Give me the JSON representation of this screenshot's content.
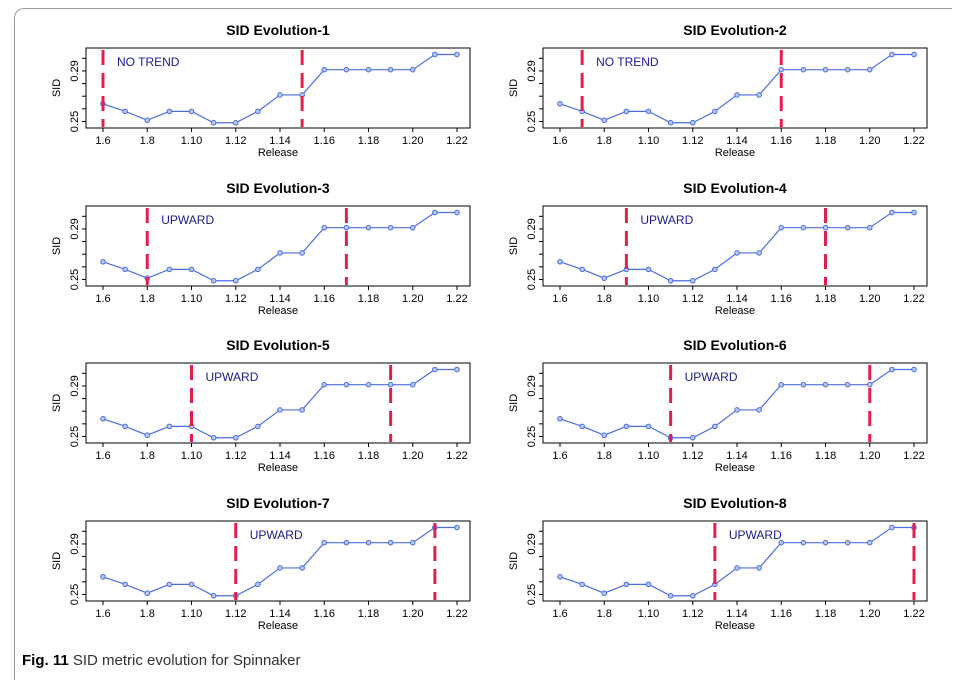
{
  "caption": {
    "label": "Fig. 11",
    "text": "SID metric evolution for Spinnaker"
  },
  "colors": {
    "line": "#4a6ee0",
    "changepoint": "#e0204c",
    "annotation": "#1a1a8c"
  },
  "chart_data": [
    {
      "type": "line",
      "title": "SID Evolution-1",
      "annotation": "NO TREND",
      "xlabel": "Release",
      "ylabel": "SID",
      "categories": [
        "1.6",
        "1.7",
        "1.8",
        "1.9",
        "1.10",
        "1.11",
        "1.12",
        "1.13",
        "1.14",
        "1.15",
        "1.16",
        "1.17",
        "1.18",
        "1.19",
        "1.20",
        "1.21",
        "1.22"
      ],
      "x_tick_labels": [
        "1.6",
        "1.8",
        "1.10",
        "1.12",
        "1.14",
        "1.16",
        "1.18",
        "1.20",
        "1.22"
      ],
      "y_tick_labels": [
        "0.25",
        "0.29"
      ],
      "ylim": [
        0.248,
        0.305
      ],
      "values": [
        0.264,
        0.258,
        0.251,
        0.258,
        0.258,
        0.249,
        0.249,
        0.258,
        0.271,
        0.271,
        0.291,
        0.291,
        0.291,
        0.291,
        0.291,
        0.303,
        0.303
      ],
      "changepoints": [
        "1.6",
        "1.15"
      ]
    },
    {
      "type": "line",
      "title": "SID Evolution-2",
      "annotation": "NO TREND",
      "xlabel": "Release",
      "ylabel": "SID",
      "categories": [
        "1.6",
        "1.7",
        "1.8",
        "1.9",
        "1.10",
        "1.11",
        "1.12",
        "1.13",
        "1.14",
        "1.15",
        "1.16",
        "1.17",
        "1.18",
        "1.19",
        "1.20",
        "1.21",
        "1.22"
      ],
      "x_tick_labels": [
        "1.6",
        "1.8",
        "1.10",
        "1.12",
        "1.14",
        "1.16",
        "1.18",
        "1.20",
        "1.22"
      ],
      "y_tick_labels": [
        "0.25",
        "0.29"
      ],
      "ylim": [
        0.248,
        0.305
      ],
      "values": [
        0.264,
        0.258,
        0.251,
        0.258,
        0.258,
        0.249,
        0.249,
        0.258,
        0.271,
        0.271,
        0.291,
        0.291,
        0.291,
        0.291,
        0.291,
        0.303,
        0.303
      ],
      "changepoints": [
        "1.7",
        "1.16"
      ]
    },
    {
      "type": "line",
      "title": "SID Evolution-3",
      "annotation": "UPWARD",
      "xlabel": "Release",
      "ylabel": "SID",
      "categories": [
        "1.6",
        "1.7",
        "1.8",
        "1.9",
        "1.10",
        "1.11",
        "1.12",
        "1.13",
        "1.14",
        "1.15",
        "1.16",
        "1.17",
        "1.18",
        "1.19",
        "1.20",
        "1.21",
        "1.22"
      ],
      "x_tick_labels": [
        "1.6",
        "1.8",
        "1.10",
        "1.12",
        "1.14",
        "1.16",
        "1.18",
        "1.20",
        "1.22"
      ],
      "y_tick_labels": [
        "0.25",
        "0.29"
      ],
      "ylim": [
        0.248,
        0.305
      ],
      "values": [
        0.264,
        0.258,
        0.251,
        0.258,
        0.258,
        0.249,
        0.249,
        0.258,
        0.271,
        0.271,
        0.291,
        0.291,
        0.291,
        0.291,
        0.291,
        0.303,
        0.303
      ],
      "changepoints": [
        "1.8",
        "1.17"
      ]
    },
    {
      "type": "line",
      "title": "SID Evolution-4",
      "annotation": "UPWARD",
      "xlabel": "Release",
      "ylabel": "SID",
      "categories": [
        "1.6",
        "1.7",
        "1.8",
        "1.9",
        "1.10",
        "1.11",
        "1.12",
        "1.13",
        "1.14",
        "1.15",
        "1.16",
        "1.17",
        "1.18",
        "1.19",
        "1.20",
        "1.21",
        "1.22"
      ],
      "x_tick_labels": [
        "1.6",
        "1.8",
        "1.10",
        "1.12",
        "1.14",
        "1.16",
        "1.18",
        "1.20",
        "1.22"
      ],
      "y_tick_labels": [
        "0.25",
        "0.29"
      ],
      "ylim": [
        0.248,
        0.305
      ],
      "values": [
        0.264,
        0.258,
        0.251,
        0.258,
        0.258,
        0.249,
        0.249,
        0.258,
        0.271,
        0.271,
        0.291,
        0.291,
        0.291,
        0.291,
        0.291,
        0.303,
        0.303
      ],
      "changepoints": [
        "1.9",
        "1.18"
      ]
    },
    {
      "type": "line",
      "title": "SID Evolution-5",
      "annotation": "UPWARD",
      "xlabel": "Release",
      "ylabel": "SID",
      "categories": [
        "1.6",
        "1.7",
        "1.8",
        "1.9",
        "1.10",
        "1.11",
        "1.12",
        "1.13",
        "1.14",
        "1.15",
        "1.16",
        "1.17",
        "1.18",
        "1.19",
        "1.20",
        "1.21",
        "1.22"
      ],
      "x_tick_labels": [
        "1.6",
        "1.8",
        "1.10",
        "1.12",
        "1.14",
        "1.16",
        "1.18",
        "1.20",
        "1.22"
      ],
      "y_tick_labels": [
        "0.25",
        "0.29"
      ],
      "ylim": [
        0.248,
        0.305
      ],
      "values": [
        0.264,
        0.258,
        0.251,
        0.258,
        0.258,
        0.249,
        0.249,
        0.258,
        0.271,
        0.271,
        0.291,
        0.291,
        0.291,
        0.291,
        0.291,
        0.303,
        0.303
      ],
      "changepoints": [
        "1.10",
        "1.19"
      ]
    },
    {
      "type": "line",
      "title": "SID Evolution-6",
      "annotation": "UPWARD",
      "xlabel": "Release",
      "ylabel": "SID",
      "categories": [
        "1.6",
        "1.7",
        "1.8",
        "1.9",
        "1.10",
        "1.11",
        "1.12",
        "1.13",
        "1.14",
        "1.15",
        "1.16",
        "1.17",
        "1.18",
        "1.19",
        "1.20",
        "1.21",
        "1.22"
      ],
      "x_tick_labels": [
        "1.6",
        "1.8",
        "1.10",
        "1.12",
        "1.14",
        "1.16",
        "1.18",
        "1.20",
        "1.22"
      ],
      "y_tick_labels": [
        "0.25",
        "0.29"
      ],
      "ylim": [
        0.248,
        0.305
      ],
      "values": [
        0.264,
        0.258,
        0.251,
        0.258,
        0.258,
        0.249,
        0.249,
        0.258,
        0.271,
        0.271,
        0.291,
        0.291,
        0.291,
        0.291,
        0.291,
        0.303,
        0.303
      ],
      "changepoints": [
        "1.11",
        "1.20"
      ]
    },
    {
      "type": "line",
      "title": "SID Evolution-7",
      "annotation": "UPWARD",
      "xlabel": "Release",
      "ylabel": "SID",
      "categories": [
        "1.6",
        "1.7",
        "1.8",
        "1.9",
        "1.10",
        "1.11",
        "1.12",
        "1.13",
        "1.14",
        "1.15",
        "1.16",
        "1.17",
        "1.18",
        "1.19",
        "1.20",
        "1.21",
        "1.22"
      ],
      "x_tick_labels": [
        "1.6",
        "1.8",
        "1.10",
        "1.12",
        "1.14",
        "1.16",
        "1.18",
        "1.20",
        "1.22"
      ],
      "y_tick_labels": [
        "0.25",
        "0.29"
      ],
      "ylim": [
        0.248,
        0.305
      ],
      "values": [
        0.264,
        0.258,
        0.251,
        0.258,
        0.258,
        0.249,
        0.249,
        0.258,
        0.271,
        0.271,
        0.291,
        0.291,
        0.291,
        0.291,
        0.291,
        0.303,
        0.303
      ],
      "changepoints": [
        "1.12",
        "1.21"
      ]
    },
    {
      "type": "line",
      "title": "SID Evolution-8",
      "annotation": "UPWARD",
      "xlabel": "Release",
      "ylabel": "SID",
      "categories": [
        "1.6",
        "1.7",
        "1.8",
        "1.9",
        "1.10",
        "1.11",
        "1.12",
        "1.13",
        "1.14",
        "1.15",
        "1.16",
        "1.17",
        "1.18",
        "1.19",
        "1.20",
        "1.21",
        "1.22"
      ],
      "x_tick_labels": [
        "1.6",
        "1.8",
        "1.10",
        "1.12",
        "1.14",
        "1.16",
        "1.18",
        "1.20",
        "1.22"
      ],
      "y_tick_labels": [
        "0.25",
        "0.29"
      ],
      "ylim": [
        0.248,
        0.305
      ],
      "values": [
        0.264,
        0.258,
        0.251,
        0.258,
        0.258,
        0.249,
        0.249,
        0.258,
        0.271,
        0.271,
        0.291,
        0.291,
        0.291,
        0.291,
        0.291,
        0.303,
        0.303
      ],
      "changepoints": [
        "1.13",
        "1.22"
      ]
    }
  ]
}
